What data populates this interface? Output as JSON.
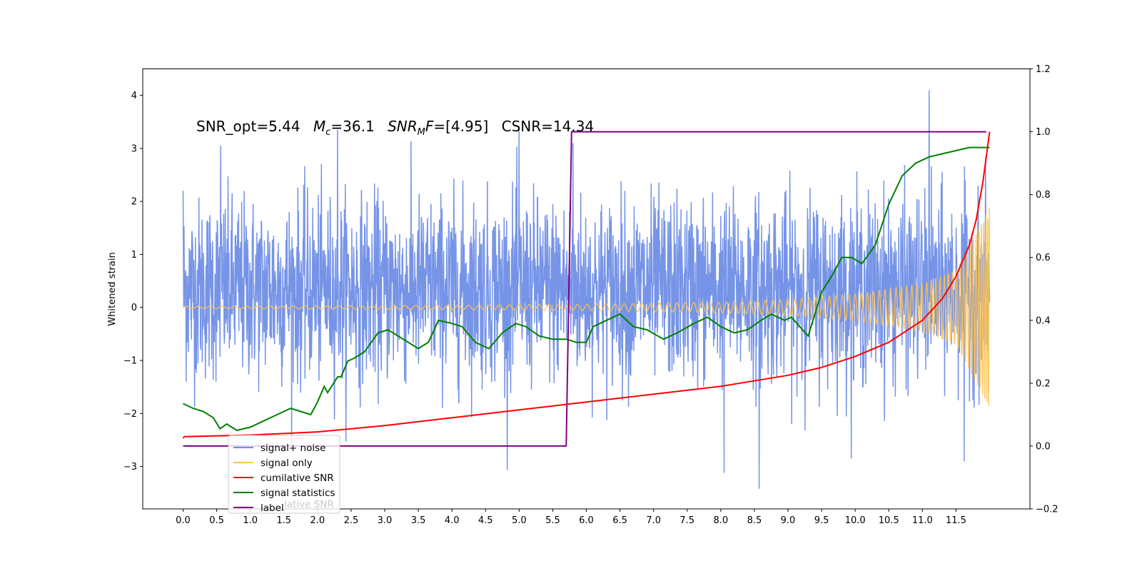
{
  "chart_data": {
    "type": "line",
    "title": "",
    "xlabel": "",
    "ylabel": "Whitened strain",
    "ylabel_right": "",
    "xlim": [
      -0.6,
      12.6
    ],
    "ylim": [
      -3.8,
      4.5
    ],
    "ylim_right": [
      -0.2,
      1.2
    ],
    "x_ticks": [
      "0.0",
      "0.5",
      "1.0",
      "1.5",
      "2.0",
      "2.5",
      "3.0",
      "3.5",
      "4.0",
      "4.5",
      "5.0",
      "5.5",
      "6.0",
      "6.5",
      "7.0",
      "7.5",
      "8.0",
      "8.5",
      "9.0",
      "9.5",
      "10.0",
      "10.5",
      "11.0",
      "11.5"
    ],
    "y_ticks": [
      "4",
      "3",
      "2",
      "1",
      "0",
      "−1",
      "−2",
      "−3"
    ],
    "y_ticks_right": [
      "1.2",
      "1.0",
      "0.8",
      "0.6",
      "0.4",
      "0.2",
      "0.0",
      "−0.2"
    ],
    "grid": false,
    "legend_position": "lower-left",
    "annotation": {
      "snr_opt": "SNR_opt=5.44",
      "mc_sym": "M",
      "mc_sub": "c",
      "mc_val": "=36.1",
      "snrmf_sym": "SNR",
      "snrmf_sub": "M",
      "snrmf_sym2": "F",
      "snrmf_val": "=[4.95]",
      "csnr": "CSNR=14.34"
    },
    "legend_overlap_text": "lative SNR",
    "series": [
      {
        "name": "signal+ noise",
        "axis": "left",
        "color": "#6f8ee6",
        "x_range": [
          0.0,
          12.0
        ],
        "noise_sigma": 0.85,
        "envelope": [
          [
            0.0,
            0.25
          ],
          [
            6.0,
            0.3
          ],
          [
            9.0,
            0.4
          ],
          [
            10.5,
            0.55
          ],
          [
            11.5,
            0.75
          ],
          [
            12.0,
            1.0
          ]
        ],
        "peaks": [
          [
            0.0,
            2.2
          ],
          [
            0.56,
            3.05
          ],
          [
            2.3,
            3.35
          ],
          [
            5.0,
            3.35
          ],
          [
            5.8,
            3.1
          ],
          [
            8.57,
            -3.42
          ],
          [
            8.05,
            -3.12
          ],
          [
            11.1,
            4.1
          ],
          [
            11.62,
            -2.9
          ]
        ]
      },
      {
        "name": "signal only",
        "axis": "left",
        "color": "#ffc24d",
        "x_range": [
          0.0,
          12.0
        ],
        "envelope": [
          [
            0.0,
            0.02
          ],
          [
            4.0,
            0.04
          ],
          [
            6.0,
            0.06
          ],
          [
            8.0,
            0.1
          ],
          [
            9.0,
            0.15
          ],
          [
            10.0,
            0.25
          ],
          [
            11.0,
            0.45
          ],
          [
            11.5,
            0.7
          ],
          [
            12.0,
            1.9
          ]
        ]
      },
      {
        "name": "cumilative SNR",
        "axis": "right",
        "color": "#ff0000",
        "x": [
          0.0,
          0.02,
          1.0,
          2.0,
          3.0,
          4.0,
          5.0,
          6.0,
          7.0,
          8.0,
          9.0,
          9.5,
          10.0,
          10.5,
          11.0,
          11.3,
          11.5,
          11.7,
          11.8,
          11.9,
          11.95,
          12.0
        ],
        "y": [
          0.025,
          0.03,
          0.035,
          0.045,
          0.065,
          0.09,
          0.115,
          0.14,
          0.165,
          0.19,
          0.225,
          0.25,
          0.285,
          0.33,
          0.4,
          0.47,
          0.54,
          0.64,
          0.72,
          0.84,
          0.92,
          1.0
        ]
      },
      {
        "name": "signal statistics",
        "axis": "right",
        "color": "#008000",
        "x": [
          0.0,
          0.15,
          0.3,
          0.45,
          0.55,
          0.65,
          0.8,
          1.0,
          1.2,
          1.4,
          1.6,
          1.75,
          1.9,
          2.0,
          2.1,
          2.15,
          2.3,
          2.35,
          2.45,
          2.55,
          2.7,
          2.8,
          2.9,
          3.05,
          3.2,
          3.35,
          3.5,
          3.65,
          3.8,
          4.0,
          4.15,
          4.35,
          4.55,
          4.75,
          4.95,
          5.1,
          5.3,
          5.5,
          5.7,
          5.85,
          6.0,
          6.1,
          6.3,
          6.5,
          6.7,
          6.9,
          7.15,
          7.35,
          7.6,
          7.8,
          8.0,
          8.2,
          8.4,
          8.6,
          8.75,
          8.85,
          8.95,
          9.05,
          9.3,
          9.5,
          9.65,
          9.8,
          9.95,
          10.1,
          10.3,
          10.5,
          10.7,
          10.9,
          11.1,
          11.3,
          11.5,
          11.7,
          11.9,
          12.0
        ],
        "y": [
          0.135,
          0.12,
          0.11,
          0.09,
          0.055,
          0.07,
          0.05,
          0.06,
          0.08,
          0.1,
          0.12,
          0.11,
          0.1,
          0.14,
          0.19,
          0.17,
          0.22,
          0.22,
          0.27,
          0.28,
          0.3,
          0.33,
          0.36,
          0.37,
          0.35,
          0.33,
          0.31,
          0.33,
          0.4,
          0.39,
          0.38,
          0.33,
          0.31,
          0.36,
          0.39,
          0.38,
          0.35,
          0.34,
          0.34,
          0.33,
          0.33,
          0.38,
          0.4,
          0.42,
          0.38,
          0.37,
          0.34,
          0.36,
          0.39,
          0.41,
          0.38,
          0.36,
          0.37,
          0.4,
          0.42,
          0.41,
          0.4,
          0.41,
          0.35,
          0.49,
          0.54,
          0.6,
          0.6,
          0.58,
          0.64,
          0.77,
          0.86,
          0.9,
          0.92,
          0.93,
          0.94,
          0.95,
          0.95,
          0.95
        ]
      },
      {
        "name": "label",
        "axis": "right",
        "color": "#800080",
        "x": [
          0.0,
          5.7,
          5.78,
          11.95
        ],
        "y": [
          0.0,
          0.0,
          1.0,
          1.0
        ]
      }
    ]
  }
}
